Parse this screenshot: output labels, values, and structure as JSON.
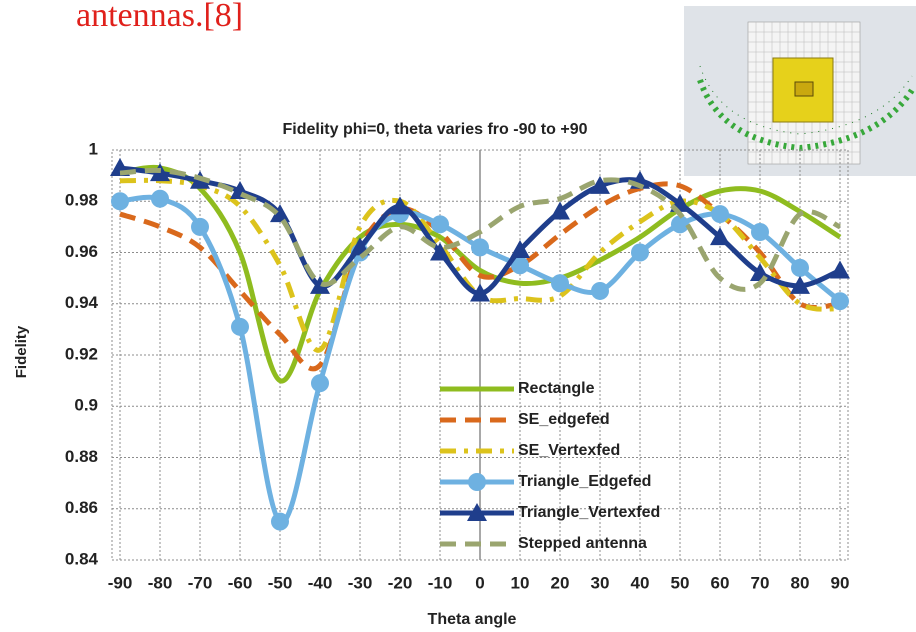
{
  "caption": "antennas.[8]",
  "chart_data": {
    "type": "line",
    "title": "Fidelity phi=0, theta varies fro -90 to +90",
    "xlabel": "Theta angle",
    "ylabel": "Fidelity",
    "x": [
      -90,
      -80,
      -70,
      -60,
      -50,
      -40,
      -30,
      -20,
      -10,
      0,
      10,
      20,
      30,
      40,
      50,
      60,
      70,
      80,
      90
    ],
    "xlim": [
      -90,
      90
    ],
    "xticks": [
      -90,
      -80,
      -70,
      -60,
      -50,
      -40,
      -30,
      -20,
      -10,
      0,
      10,
      20,
      30,
      40,
      50,
      60,
      70,
      80,
      90
    ],
    "ylim": [
      0.84,
      1
    ],
    "yticks": [
      0.84,
      0.86,
      0.88,
      0.9,
      0.92,
      0.94,
      0.96,
      0.98,
      1
    ],
    "grid": true,
    "series": [
      {
        "name": "Rectangle",
        "color": "#8fbc1f",
        "dash": "solid",
        "marker": "none",
        "values": [
          0.991,
          0.993,
          0.985,
          0.96,
          0.91,
          0.945,
          0.966,
          0.971,
          0.966,
          0.953,
          0.948,
          0.95,
          0.957,
          0.966,
          0.977,
          0.984,
          0.984,
          0.976,
          0.966
        ]
      },
      {
        "name": "SE_edgefed",
        "color": "#d9691c",
        "dash": "dash",
        "marker": "none",
        "values": [
          0.975,
          0.97,
          0.962,
          0.945,
          0.928,
          0.916,
          0.962,
          0.977,
          0.968,
          0.951,
          0.955,
          0.967,
          0.978,
          0.985,
          0.986,
          0.975,
          0.96,
          0.94,
          0.94
        ]
      },
      {
        "name": "SE_Vertexfed",
        "color": "#dcc31c",
        "dash": "dashdot",
        "marker": "none",
        "values": [
          0.988,
          0.988,
          0.986,
          0.978,
          0.955,
          0.922,
          0.97,
          0.98,
          0.963,
          0.943,
          0.942,
          0.943,
          0.96,
          0.972,
          0.98,
          0.975,
          0.958,
          0.94,
          0.938
        ]
      },
      {
        "name": "Triangle_Edgefed",
        "color": "#6eb1e1",
        "dash": "solid",
        "marker": "circle",
        "values": [
          0.98,
          0.981,
          0.97,
          0.931,
          0.855,
          0.909,
          0.96,
          0.975,
          0.971,
          0.962,
          0.955,
          0.948,
          0.945,
          0.96,
          0.971,
          0.975,
          0.968,
          0.954,
          0.941
        ]
      },
      {
        "name": "Triangle_Vertexfed",
        "color": "#1f3e8c",
        "dash": "solid",
        "marker": "triangle",
        "values": [
          0.993,
          0.991,
          0.988,
          0.984,
          0.975,
          0.947,
          0.962,
          0.978,
          0.96,
          0.944,
          0.961,
          0.976,
          0.986,
          0.988,
          0.979,
          0.966,
          0.952,
          0.947,
          0.953
        ]
      },
      {
        "name": "Stepped antenna",
        "color": "#9aa56f",
        "dash": "dash",
        "marker": "none",
        "values": [
          0.991,
          0.992,
          0.989,
          0.983,
          0.974,
          0.948,
          0.958,
          0.97,
          0.962,
          0.968,
          0.978,
          0.981,
          0.988,
          0.986,
          0.975,
          0.95,
          0.948,
          0.975,
          0.97
        ]
      }
    ]
  }
}
